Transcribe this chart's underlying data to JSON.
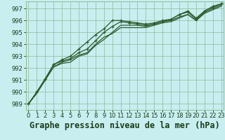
{
  "title": "Graphe pression niveau de la mer (hPa)",
  "bg_color": "#c8eef0",
  "grid_color": "#90b898",
  "line_color": "#2d5a2d",
  "ylim": [
    988.5,
    997.6
  ],
  "xlim": [
    -0.3,
    23.3
  ],
  "yticks": [
    989,
    990,
    991,
    992,
    993,
    994,
    995,
    996,
    997
  ],
  "xticks": [
    0,
    1,
    2,
    3,
    4,
    5,
    6,
    7,
    8,
    9,
    10,
    11,
    12,
    13,
    14,
    15,
    16,
    17,
    18,
    19,
    20,
    21,
    22,
    23
  ],
  "series": [
    {
      "y": [
        989.0,
        989.9,
        991.0,
        992.1,
        992.4,
        992.5,
        993.0,
        993.2,
        993.9,
        994.4,
        995.0,
        995.6,
        995.6,
        995.6,
        995.5,
        995.7,
        995.9,
        996.0,
        996.3,
        996.5,
        996.0,
        996.7,
        997.0,
        997.3
      ],
      "marker": false
    },
    {
      "y": [
        989.0,
        989.9,
        991.0,
        992.1,
        992.5,
        992.7,
        993.1,
        993.3,
        994.0,
        994.6,
        994.9,
        995.4,
        995.4,
        995.4,
        995.4,
        995.6,
        995.8,
        995.9,
        996.2,
        996.5,
        996.0,
        996.6,
        996.9,
        997.2
      ],
      "marker": false
    },
    {
      "y": [
        989.0,
        990.0,
        991.1,
        992.3,
        992.6,
        992.8,
        993.3,
        993.6,
        994.3,
        995.0,
        995.5,
        995.9,
        995.8,
        995.7,
        995.6,
        995.7,
        995.9,
        996.1,
        996.5,
        996.8,
        996.2,
        996.8,
        997.2,
        997.4
      ],
      "marker": true
    },
    {
      "y": [
        989.0,
        990.0,
        991.1,
        992.3,
        992.7,
        993.0,
        993.6,
        994.2,
        994.8,
        995.3,
        996.0,
        996.0,
        995.9,
        995.8,
        995.7,
        995.8,
        996.0,
        996.1,
        996.5,
        996.7,
        996.1,
        996.8,
        997.1,
        997.4
      ],
      "marker": true
    }
  ],
  "title_fontsize": 8.5,
  "tick_fontsize": 6,
  "lw": 0.9
}
